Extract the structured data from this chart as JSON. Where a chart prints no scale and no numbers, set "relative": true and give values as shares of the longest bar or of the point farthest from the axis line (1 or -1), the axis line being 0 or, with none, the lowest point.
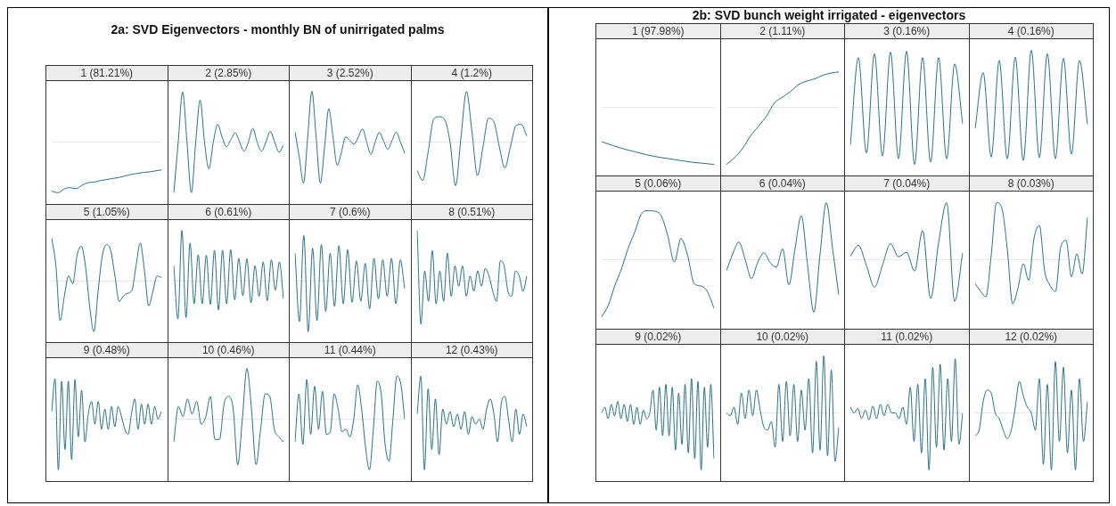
{
  "chart_data": [
    {
      "type": "line",
      "title": "1 (81.21%)",
      "annotations": [
        "2a: SVD Eigenvectors - monthly BN of unirrigated palms"
      ],
      "relative": true,
      "categories": [
        null,
        null,
        null,
        null,
        null,
        null,
        null,
        null,
        null,
        null,
        null,
        null,
        null,
        null,
        null,
        null,
        null,
        null,
        null
      ],
      "series": [
        {
          "color": "#2a6f89",
          "values": [
            -0.97,
            -1.0,
            -0.93,
            -0.9,
            -0.92,
            -0.85,
            -0.8,
            -0.79,
            -0.76,
            -0.74,
            -0.72,
            -0.7,
            -0.67,
            -0.64,
            -0.62,
            -0.6,
            -0.59,
            -0.57,
            -0.55
          ]
        }
      ],
      "ref_lines": [
        {
          "axis": "y",
          "value": 0,
          "color": "#e8e8e8"
        }
      ]
    },
    {
      "type": "line",
      "title": "2 (2.85%)",
      "relative": true,
      "categories": [
        null,
        null,
        null,
        null,
        null,
        null,
        null,
        null,
        null,
        null,
        null,
        null,
        null,
        null,
        null,
        null,
        null,
        null,
        null,
        null,
        null,
        null,
        null,
        null,
        null,
        null
      ],
      "series": [
        {
          "color": "#2a6f89",
          "values": [
            -1.0,
            0,
            0.99,
            0,
            -1.0,
            0,
            0.83,
            0,
            -0.53,
            0,
            0.35,
            0.1,
            -0.09,
            0.05,
            0.18,
            0,
            -0.18,
            0,
            0.27,
            0,
            -0.18,
            0,
            0.21,
            0,
            -0.2,
            -0.06
          ]
        }
      ],
      "ref_lines": [
        {
          "axis": "y",
          "value": 0,
          "color": "#e8e8e8"
        }
      ]
    },
    {
      "type": "line",
      "title": "3 (2.52%)",
      "relative": true,
      "categories": [
        null,
        null,
        null,
        null,
        null,
        null,
        null,
        null,
        null,
        null,
        null,
        null,
        null,
        null,
        null,
        null,
        null,
        null,
        null,
        null,
        null,
        null,
        null,
        null,
        null,
        null,
        null
      ],
      "series": [
        {
          "color": "#2a6f89",
          "values": [
            0.2,
            -0.3,
            -0.81,
            0.1,
            1.0,
            0.1,
            -0.81,
            -0.1,
            0.66,
            0.1,
            -0.46,
            -0.2,
            0.1,
            0.03,
            -0.04,
            0.1,
            0.26,
            0,
            -0.24,
            0,
            0.19,
            0.02,
            -0.14,
            0.03,
            0.2,
            0,
            -0.22
          ]
        }
      ],
      "ref_lines": [
        {
          "axis": "y",
          "value": 0,
          "color": "#e8e8e8"
        }
      ]
    },
    {
      "type": "line",
      "title": "4 (1.2%)",
      "relative": true,
      "categories": [
        null,
        null,
        null,
        null,
        null,
        null,
        null,
        null,
        null,
        null,
        null,
        null,
        null,
        null,
        null,
        null,
        null,
        null,
        null,
        null,
        null
      ],
      "series": [
        {
          "color": "#2a6f89",
          "values": [
            -0.56,
            -0.76,
            -0.2,
            0.45,
            0.5,
            0.45,
            0,
            -0.86,
            0.1,
            1.0,
            0.2,
            -0.66,
            -0.1,
            0.47,
            0.4,
            -0.1,
            -0.51,
            -0.1,
            0.32,
            0.35,
            0.12
          ]
        }
      ],
      "ref_lines": [
        {
          "axis": "y",
          "value": 0,
          "color": "#e8e8e8"
        }
      ]
    },
    {
      "type": "line",
      "title": "5 (1.05%)",
      "relative": true,
      "categories": [
        null,
        null,
        null,
        null,
        null,
        null,
        null,
        null,
        null,
        null,
        null,
        null,
        null,
        null,
        null,
        null,
        null,
        null,
        null,
        null,
        null,
        null,
        null,
        null,
        null,
        null,
        null
      ],
      "series": [
        {
          "color": "#2a6f89",
          "values": [
            0.85,
            0.3,
            -0.78,
            -0.3,
            0.1,
            -0.05,
            0.5,
            0.69,
            0.3,
            -0.5,
            -1.0,
            -0.2,
            0.5,
            0.72,
            0.6,
            0.1,
            -0.4,
            -0.3,
            -0.24,
            -0.19,
            0.3,
            0.75,
            0.2,
            -0.49,
            -0.2,
            0.1,
            0.07
          ]
        }
      ],
      "ref_lines": [
        {
          "axis": "y",
          "value": 0,
          "color": "#e8e8e8"
        }
      ]
    },
    {
      "type": "line",
      "title": "6 (0.61%)",
      "relative": true,
      "categories": [
        null,
        null,
        null,
        null,
        null,
        null,
        null,
        null,
        null,
        null,
        null,
        null,
        null,
        null,
        null,
        null,
        null,
        null,
        null,
        null,
        null,
        null,
        null,
        null,
        null,
        null,
        null,
        null
      ],
      "series": [
        {
          "color": "#2a6f89",
          "values": [
            0.3,
            -0.75,
            1.0,
            -0.72,
            0.75,
            -0.45,
            0.52,
            -0.45,
            0.51,
            -0.46,
            0.61,
            -0.57,
            0.61,
            -0.45,
            0.62,
            -0.37,
            0.45,
            -0.29,
            0.44,
            -0.43,
            0.3,
            -0.3,
            0.38,
            -0.39,
            0.42,
            -0.18,
            0.38,
            -0.35
          ]
        }
      ],
      "ref_lines": [
        {
          "axis": "y",
          "value": 0,
          "color": "#e8e8e8"
        }
      ]
    },
    {
      "type": "line",
      "title": "7 (0.6%)",
      "relative": true,
      "categories": [
        null,
        null,
        null,
        null,
        null,
        null,
        null,
        null,
        null,
        null,
        null,
        null,
        null,
        null,
        null,
        null,
        null,
        null,
        null,
        null,
        null,
        null,
        null,
        null,
        null,
        null
      ],
      "series": [
        {
          "color": "#2a6f89",
          "values": [
            0.55,
            -0.8,
            0.9,
            -1.0,
            0.65,
            -0.78,
            0.72,
            -0.6,
            0.55,
            -0.5,
            0.7,
            -0.45,
            0.62,
            -0.42,
            0.4,
            -0.4,
            0.35,
            -0.55,
            0.45,
            -0.35,
            0.42,
            -0.3,
            0.45,
            -0.45,
            0.42,
            -0.15
          ]
        }
      ],
      "ref_lines": [
        {
          "axis": "y",
          "value": 0,
          "color": "#e8e8e8"
        }
      ]
    },
    {
      "type": "line",
      "title": "8 (0.51%)",
      "relative": true,
      "categories": [
        null,
        null,
        null,
        null,
        null,
        null,
        null,
        null,
        null,
        null,
        null,
        null,
        null,
        null,
        null,
        null,
        null,
        null,
        null,
        null,
        null,
        null,
        null,
        null,
        null,
        null,
        null,
        null,
        null,
        null
      ],
      "series": [
        {
          "color": "#2a6f89",
          "values": [
            1.0,
            -0.85,
            0.2,
            -0.4,
            0.6,
            -0.45,
            0.2,
            -0.4,
            0.55,
            -0.3,
            0.3,
            -0.1,
            0.3,
            -0.3,
            0.1,
            -0.2,
            0.2,
            -0.1,
            0.25,
            0.1,
            -0.2,
            -0.4,
            0.4,
            0.3,
            -0.2,
            -0.3,
            0.2,
            0.1,
            -0.2,
            0.1
          ]
        }
      ],
      "ref_lines": [
        {
          "axis": "y",
          "value": 0,
          "color": "#e8e8e8"
        }
      ]
    },
    {
      "type": "line",
      "title": "9 (0.48%)",
      "relative": true,
      "categories": [
        null,
        null,
        null,
        null,
        null,
        null,
        null,
        null,
        null,
        null,
        null,
        null,
        null,
        null,
        null,
        null,
        null,
        null,
        null,
        null,
        null,
        null,
        null,
        null,
        null,
        null,
        null,
        null,
        null,
        null,
        null,
        null,
        null,
        null
      ],
      "series": [
        {
          "color": "#2a6f89",
          "values": [
            0.15,
            0.8,
            -1.0,
            0.75,
            -0.6,
            0.75,
            -0.8,
            0.78,
            -0.35,
            0.57,
            -0.45,
            0.1,
            0.35,
            -0.1,
            0.35,
            -0.2,
            0.2,
            -0.2,
            0.25,
            -0.15,
            0.25,
            0.05,
            -0.2,
            -0.3,
            0.1,
            0.4,
            -0.2,
            0.3,
            -0.1,
            0.3,
            -0.1,
            0.25,
            0.0,
            0.15
          ]
        }
      ],
      "ref_lines": [
        {
          "axis": "y",
          "value": 0,
          "color": "#e8e8e8"
        }
      ]
    },
    {
      "type": "line",
      "title": "10 (0.46%)",
      "relative": true,
      "categories": [
        null,
        null,
        null,
        null,
        null,
        null,
        null,
        null,
        null,
        null,
        null,
        null,
        null,
        null,
        null,
        null,
        null,
        null,
        null,
        null,
        null,
        null,
        null,
        null,
        null
      ],
      "series": [
        {
          "color": "#2a6f89",
          "values": [
            -0.45,
            0.25,
            0.05,
            0.4,
            0.1,
            0.35,
            -0.1,
            0.05,
            0.45,
            -0.4,
            -0.4,
            0.3,
            0.45,
            0.2,
            -0.9,
            0.0,
            1.0,
            0.2,
            -0.9,
            -0.2,
            0.5,
            0.45,
            -0.2,
            -0.35,
            -0.45
          ]
        }
      ],
      "ref_lines": [
        {
          "axis": "y",
          "value": 0,
          "color": "#e8e8e8"
        }
      ]
    },
    {
      "type": "line",
      "title": "11 (0.44%)",
      "relative": true,
      "categories": [
        null,
        null,
        null,
        null,
        null,
        null,
        null,
        null,
        null,
        null,
        null,
        null,
        null,
        null,
        null,
        null,
        null,
        null,
        null,
        null,
        null,
        null,
        null,
        null,
        null,
        null,
        null,
        null,
        null
      ],
      "series": [
        {
          "color": "#2a6f89",
          "values": [
            -0.45,
            0.5,
            -0.5,
            0.78,
            -0.3,
            0.65,
            -0.2,
            0.55,
            -0.3,
            -0.25,
            0.5,
            0.2,
            -0.25,
            -0.2,
            -0.35,
            0.0,
            0.68,
            0.2,
            -0.55,
            -1.0,
            -0.2,
            0.75,
            0.5,
            -0.5,
            -0.83,
            0.0,
            0.85,
            0.7,
            0.0
          ]
        }
      ],
      "ref_lines": [
        {
          "axis": "y",
          "value": 0,
          "color": "#e8e8e8"
        }
      ]
    },
    {
      "type": "line",
      "title": "12 (0.43%)",
      "relative": true,
      "categories": [
        null,
        null,
        null,
        null,
        null,
        null,
        null,
        null,
        null,
        null,
        null,
        null,
        null,
        null,
        null,
        null,
        null,
        null,
        null,
        null,
        null,
        null,
        null,
        null,
        null,
        null,
        null,
        null,
        null,
        null,
        null
      ],
      "series": [
        {
          "color": "#2a6f89",
          "values": [
            0.1,
            0.85,
            -1.0,
            0.6,
            -0.6,
            0.4,
            -0.7,
            0.2,
            -0.1,
            0.15,
            -0.15,
            0.1,
            -0.2,
            0.15,
            -0.3,
            0.05,
            -0.1,
            0.0,
            -0.2,
            0.2,
            0.4,
            0.1,
            -0.45,
            0.3,
            0.45,
            0.0,
            -0.45,
            0.2,
            -0.3,
            0.1,
            -0.15
          ]
        }
      ],
      "ref_lines": [
        {
          "axis": "y",
          "value": 0,
          "color": "#e8e8e8"
        }
      ]
    },
    {
      "type": "line",
      "title": "1 (97.98%)",
      "annotations": [
        "2b: SVD bunch weight irrigated - eigenvectors"
      ],
      "relative": true,
      "categories": [
        null,
        null,
        null,
        null,
        null,
        null,
        null,
        null,
        null,
        null,
        null
      ],
      "series": [
        {
          "color": "#2a6f89",
          "values": [
            -0.6,
            -0.67,
            -0.73,
            -0.78,
            -0.83,
            -0.87,
            -0.9,
            -0.93,
            -0.96,
            -0.98,
            -1.0
          ]
        }
      ],
      "ref_lines": [
        {
          "axis": "y",
          "value": 0,
          "color": "#e8e8e8"
        }
      ]
    },
    {
      "type": "line",
      "title": "2 (1.11%)",
      "relative": true,
      "categories": [
        null,
        null,
        null,
        null,
        null,
        null,
        null,
        null,
        null,
        null,
        null,
        null,
        null,
        null,
        null
      ],
      "series": [
        {
          "color": "#2a6f89",
          "values": [
            -1.0,
            -0.88,
            -0.72,
            -0.5,
            -0.33,
            -0.15,
            0.08,
            0.18,
            0.28,
            0.4,
            0.46,
            0.5,
            0.56,
            0.6,
            0.62
          ]
        }
      ],
      "ref_lines": [
        {
          "axis": "y",
          "value": 0,
          "color": "#e8e8e8"
        }
      ]
    },
    {
      "type": "line",
      "title": "3 (0.16%)",
      "relative": true,
      "categories": [
        null,
        null,
        null,
        null,
        null,
        null,
        null,
        null,
        null,
        null,
        null,
        null,
        null,
        null,
        null
      ],
      "series": [
        {
          "color": "#2a6f89",
          "values": [
            -0.66,
            0.87,
            -0.8,
            0.94,
            -0.85,
            0.97,
            -0.9,
            0.98,
            -1.0,
            0.87,
            -0.96,
            0.87,
            -0.9,
            0.76,
            -0.29
          ]
        }
      ],
      "ref_lines": [
        {
          "axis": "y",
          "value": 0,
          "color": "#e8e8e8"
        }
      ]
    },
    {
      "type": "line",
      "title": "4 (0.16%)",
      "relative": true,
      "categories": [
        null,
        null,
        null,
        null,
        null,
        null,
        null,
        null,
        null,
        null,
        null,
        null,
        null,
        null,
        null
      ],
      "series": [
        {
          "color": "#2a6f89",
          "values": [
            -0.37,
            0.61,
            -0.87,
            0.82,
            -0.9,
            0.88,
            -0.93,
            1.0,
            -0.88,
            0.94,
            -0.9,
            0.86,
            -0.82,
            0.82,
            -0.3
          ]
        }
      ],
      "ref_lines": [
        {
          "axis": "y",
          "value": 0,
          "color": "#e8e8e8"
        }
      ]
    },
    {
      "type": "line",
      "title": "5 (0.06%)",
      "relative": true,
      "categories": [
        null,
        null,
        null,
        null,
        null,
        null,
        null,
        null,
        null,
        null,
        null,
        null,
        null,
        null,
        null,
        null,
        null,
        null
      ],
      "series": [
        {
          "color": "#2a6f89",
          "values": [
            -1.0,
            -0.8,
            -0.45,
            -0.16,
            0.2,
            0.48,
            0.8,
            0.86,
            0.85,
            0.77,
            0.42,
            -0.04,
            0.37,
            0.08,
            -0.42,
            -0.46,
            -0.56,
            -0.85
          ]
        }
      ],
      "ref_lines": [
        {
          "axis": "y",
          "value": 0,
          "color": "#e8e8e8"
        }
      ]
    },
    {
      "type": "line",
      "title": "6 (0.04%)",
      "relative": true,
      "categories": [
        null,
        null,
        null,
        null,
        null,
        null,
        null,
        null,
        null,
        null,
        null,
        null,
        null,
        null,
        null,
        null,
        null,
        null,
        null
      ],
      "series": [
        {
          "color": "#2a6f89",
          "values": [
            -0.19,
            0.1,
            0.31,
            0.0,
            -0.33,
            -0.05,
            0.12,
            -0.05,
            -0.13,
            0.19,
            -0.44,
            0.2,
            0.77,
            -0.1,
            -0.92,
            0.1,
            1.0,
            0.2,
            -0.62
          ]
        }
      ],
      "ref_lines": [
        {
          "axis": "y",
          "value": 0,
          "color": "#e8e8e8"
        }
      ]
    },
    {
      "type": "line",
      "title": "7 (0.04%)",
      "relative": true,
      "categories": [
        null,
        null,
        null,
        null,
        null,
        null,
        null,
        null,
        null,
        null,
        null,
        null,
        null,
        null,
        null
      ],
      "series": [
        {
          "color": "#2a6f89",
          "values": [
            0.06,
            0.25,
            -0.1,
            -0.48,
            -0.1,
            0.28,
            0.05,
            0.13,
            -0.2,
            0.51,
            -0.68,
            0.3,
            1.0,
            -0.73,
            0.12
          ]
        }
      ],
      "ref_lines": [
        {
          "axis": "y",
          "value": 0,
          "color": "#e8e8e8"
        }
      ]
    },
    {
      "type": "line",
      "title": "8 (0.03%)",
      "relative": true,
      "categories": [
        null,
        null,
        null,
        null,
        null,
        null,
        null,
        null,
        null,
        null,
        null,
        null,
        null,
        null,
        null,
        null,
        null,
        null,
        null,
        null,
        null,
        null
      ],
      "series": [
        {
          "color": "#2a6f89",
          "values": [
            -0.42,
            -0.55,
            -0.65,
            0.08,
            1.0,
            0.9,
            0.19,
            -0.77,
            -0.5,
            -0.07,
            -0.36,
            0.37,
            0.6,
            -0.2,
            -0.45,
            -0.56,
            0.22,
            0.34,
            -0.3,
            0.1,
            -0.25,
            0.74
          ]
        }
      ],
      "ref_lines": [
        {
          "axis": "y",
          "value": 0,
          "color": "#e8e8e8"
        }
      ]
    },
    {
      "type": "line",
      "title": "9 (0.02%)",
      "relative": true,
      "categories": [
        null,
        null,
        null,
        null,
        null,
        null,
        null,
        null,
        null,
        null,
        null,
        null,
        null,
        null,
        null,
        null,
        null,
        null,
        null,
        null,
        null,
        null,
        null,
        null,
        null,
        null,
        null,
        null,
        null,
        null,
        null,
        null,
        null,
        null,
        null,
        null
      ],
      "series": [
        {
          "color": "#2a6f89",
          "values": [
            0.0,
            0.1,
            -0.1,
            0.15,
            -0.05,
            0.2,
            -0.1,
            0.15,
            -0.15,
            0.15,
            -0.2,
            0.1,
            -0.2,
            0.05,
            -0.1,
            0.0,
            0.4,
            -0.3,
            0.45,
            -0.4,
            0.5,
            -0.4,
            0.45,
            -0.65,
            0.35,
            -0.55,
            0.5,
            -0.7,
            0.6,
            -0.8,
            0.55,
            -1.0,
            0.45,
            -0.6,
            0.5,
            -0.8
          ]
        }
      ],
      "ref_lines": [
        {
          "axis": "y",
          "value": 0,
          "color": "#e8e8e8"
        }
      ]
    },
    {
      "type": "line",
      "title": "10 (0.02%)",
      "relative": true,
      "categories": [
        null,
        null,
        null,
        null,
        null,
        null,
        null,
        null,
        null,
        null,
        null,
        null,
        null,
        null,
        null,
        null,
        null,
        null,
        null,
        null,
        null,
        null,
        null,
        null,
        null,
        null,
        null,
        null,
        null,
        null,
        null
      ],
      "series": [
        {
          "color": "#2a6f89",
          "values": [
            0.0,
            -0.05,
            0.1,
            -0.2,
            0.35,
            -0.1,
            0.4,
            -0.05,
            0.4,
            0.05,
            -0.25,
            -0.3,
            -0.15,
            -0.6,
            0.5,
            -0.5,
            0.55,
            -0.4,
            0.5,
            -0.5,
            0.4,
            -0.3,
            0.6,
            -0.7,
            0.9,
            -0.65,
            1.0,
            -0.75,
            0.75,
            -0.85,
            -0.25
          ]
        }
      ],
      "ref_lines": [
        {
          "axis": "y",
          "value": 0,
          "color": "#e8e8e8"
        }
      ]
    },
    {
      "type": "line",
      "title": "11 (0.02%)",
      "relative": true,
      "categories": [
        null,
        null,
        null,
        null,
        null,
        null,
        null,
        null,
        null,
        null,
        null,
        null,
        null,
        null,
        null,
        null,
        null,
        null,
        null,
        null,
        null,
        null,
        null,
        null,
        null,
        null,
        null,
        null,
        null,
        null,
        null
      ],
      "series": [
        {
          "color": "#2a6f89",
          "values": [
            0.1,
            0.0,
            0.08,
            -0.1,
            0.05,
            -0.12,
            0.12,
            -0.1,
            0.15,
            -0.05,
            0.15,
            0.0,
            0.0,
            -0.1,
            0.1,
            -0.2,
            0.45,
            -0.5,
            0.5,
            -0.7,
            0.6,
            -1.0,
            0.8,
            -0.6,
            0.85,
            -0.65,
            0.6,
            -0.5,
            0.95,
            -0.55,
            0.0
          ]
        }
      ],
      "ref_lines": [
        {
          "axis": "y",
          "value": 0,
          "color": "#e8e8e8"
        }
      ]
    },
    {
      "type": "line",
      "title": "12 (0.02%)",
      "relative": true,
      "categories": [
        null,
        null,
        null,
        null,
        null,
        null,
        null,
        null,
        null,
        null,
        null,
        null,
        null,
        null,
        null,
        null,
        null,
        null,
        null,
        null,
        null,
        null,
        null,
        null,
        null,
        null,
        null,
        null,
        null
      ],
      "series": [
        {
          "color": "#2a6f89",
          "values": [
            -0.4,
            -0.3,
            0.2,
            0.4,
            0.35,
            0.0,
            -0.1,
            -0.3,
            -0.45,
            -0.3,
            0.1,
            0.55,
            0.3,
            0.1,
            0.0,
            -0.3,
            0.6,
            -0.9,
            0.5,
            -1.0,
            0.9,
            -0.5,
            0.8,
            -0.7,
            0.4,
            -1.0,
            0.6,
            -0.5,
            0.2
          ]
        }
      ],
      "ref_lines": [
        {
          "axis": "y",
          "value": 0,
          "color": "#e8e8e8"
        }
      ]
    }
  ]
}
